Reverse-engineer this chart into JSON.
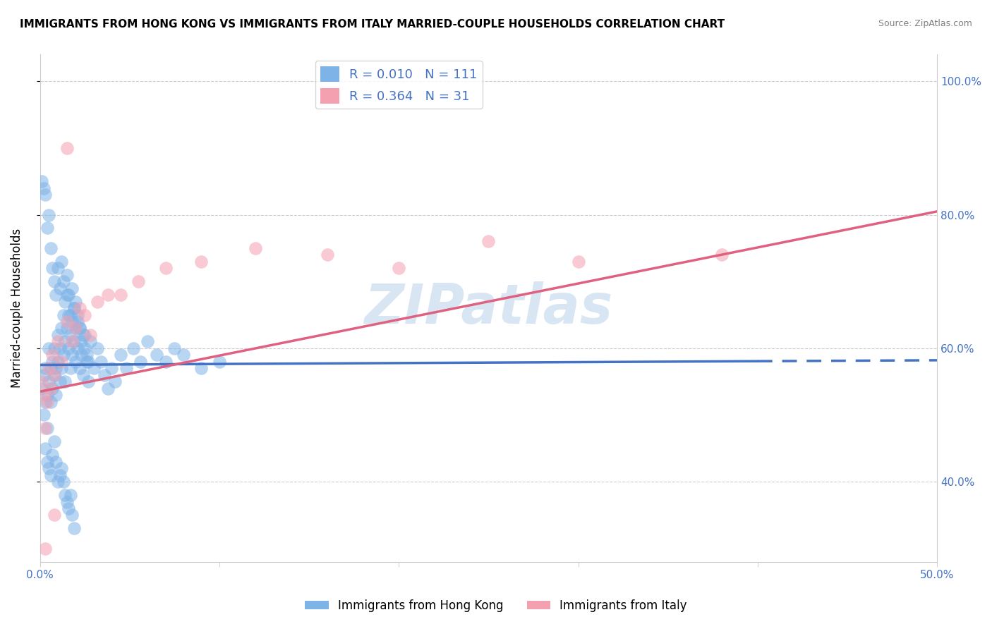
{
  "title": "IMMIGRANTS FROM HONG KONG VS IMMIGRANTS FROM ITALY MARRIED-COUPLE HOUSEHOLDS CORRELATION CHART",
  "source": "Source: ZipAtlas.com",
  "ylabel": "Married-couple Households",
  "hk_color": "#7EB3E8",
  "italy_color": "#F5A0B0",
  "hk_line_color": "#4472C4",
  "italy_line_color": "#E06080",
  "hk_R": 0.01,
  "hk_N": 111,
  "italy_R": 0.364,
  "italy_N": 31,
  "xlim": [
    0.0,
    0.5
  ],
  "ylim": [
    0.28,
    1.04
  ],
  "x_ticks": [
    0.0,
    0.1,
    0.2,
    0.3,
    0.4,
    0.5
  ],
  "x_tick_labels": [
    "0.0%",
    "",
    "",
    "",
    "",
    "50.0%"
  ],
  "y_ticks": [
    0.4,
    0.6,
    0.8,
    1.0
  ],
  "y_tick_labels_right": [
    "40.0%",
    "60.0%",
    "80.0%",
    "100.0%"
  ],
  "watermark": "ZIPatlas",
  "hk_line_x0": 0.0,
  "hk_line_x1": 0.5,
  "hk_line_y0": 0.575,
  "hk_line_y1": 0.582,
  "hk_line_solid_end": 0.4,
  "italy_line_x0": 0.0,
  "italy_line_x1": 0.5,
  "italy_line_y0": 0.535,
  "italy_line_y1": 0.805,
  "hk_x": [
    0.001,
    0.002,
    0.002,
    0.003,
    0.003,
    0.004,
    0.004,
    0.005,
    0.005,
    0.006,
    0.006,
    0.007,
    0.007,
    0.008,
    0.008,
    0.009,
    0.009,
    0.01,
    0.01,
    0.011,
    0.011,
    0.012,
    0.012,
    0.013,
    0.013,
    0.014,
    0.014,
    0.015,
    0.015,
    0.016,
    0.016,
    0.017,
    0.017,
    0.018,
    0.018,
    0.019,
    0.019,
    0.02,
    0.02,
    0.021,
    0.021,
    0.022,
    0.022,
    0.023,
    0.024,
    0.025,
    0.026,
    0.027,
    0.028,
    0.03,
    0.032,
    0.034,
    0.036,
    0.038,
    0.04,
    0.042,
    0.045,
    0.048,
    0.052,
    0.056,
    0.06,
    0.065,
    0.07,
    0.075,
    0.08,
    0.09,
    0.1,
    0.001,
    0.002,
    0.003,
    0.004,
    0.005,
    0.006,
    0.007,
    0.008,
    0.009,
    0.01,
    0.011,
    0.012,
    0.013,
    0.014,
    0.015,
    0.016,
    0.017,
    0.018,
    0.019,
    0.02,
    0.021,
    0.022,
    0.023,
    0.024,
    0.025,
    0.026,
    0.027,
    0.003,
    0.004,
    0.005,
    0.006,
    0.007,
    0.008,
    0.009,
    0.01,
    0.011,
    0.012,
    0.013,
    0.014,
    0.015,
    0.016,
    0.017,
    0.018,
    0.019
  ],
  "hk_y": [
    0.54,
    0.56,
    0.5,
    0.52,
    0.57,
    0.53,
    0.48,
    0.55,
    0.6,
    0.52,
    0.57,
    0.54,
    0.58,
    0.56,
    0.6,
    0.53,
    0.57,
    0.58,
    0.62,
    0.55,
    0.6,
    0.57,
    0.63,
    0.59,
    0.65,
    0.61,
    0.55,
    0.63,
    0.68,
    0.6,
    0.65,
    0.62,
    0.57,
    0.64,
    0.59,
    0.66,
    0.61,
    0.63,
    0.58,
    0.65,
    0.6,
    0.57,
    0.63,
    0.59,
    0.56,
    0.62,
    0.58,
    0.55,
    0.61,
    0.57,
    0.6,
    0.58,
    0.56,
    0.54,
    0.57,
    0.55,
    0.59,
    0.57,
    0.6,
    0.58,
    0.61,
    0.59,
    0.58,
    0.6,
    0.59,
    0.57,
    0.58,
    0.85,
    0.84,
    0.83,
    0.78,
    0.8,
    0.75,
    0.72,
    0.7,
    0.68,
    0.72,
    0.69,
    0.73,
    0.7,
    0.67,
    0.71,
    0.68,
    0.65,
    0.69,
    0.66,
    0.67,
    0.64,
    0.63,
    0.61,
    0.62,
    0.6,
    0.59,
    0.58,
    0.45,
    0.43,
    0.42,
    0.41,
    0.44,
    0.46,
    0.43,
    0.4,
    0.41,
    0.42,
    0.4,
    0.38,
    0.37,
    0.36,
    0.38,
    0.35,
    0.33
  ],
  "italy_x": [
    0.001,
    0.002,
    0.003,
    0.004,
    0.005,
    0.006,
    0.007,
    0.008,
    0.01,
    0.012,
    0.015,
    0.018,
    0.02,
    0.022,
    0.025,
    0.028,
    0.032,
    0.038,
    0.045,
    0.055,
    0.07,
    0.09,
    0.12,
    0.16,
    0.2,
    0.25,
    0.3,
    0.38,
    0.003,
    0.008,
    0.015
  ],
  "italy_y": [
    0.55,
    0.53,
    0.48,
    0.52,
    0.57,
    0.54,
    0.59,
    0.56,
    0.61,
    0.58,
    0.64,
    0.61,
    0.63,
    0.66,
    0.65,
    0.62,
    0.67,
    0.68,
    0.68,
    0.7,
    0.72,
    0.73,
    0.75,
    0.74,
    0.72,
    0.76,
    0.73,
    0.74,
    0.3,
    0.35,
    0.9
  ]
}
